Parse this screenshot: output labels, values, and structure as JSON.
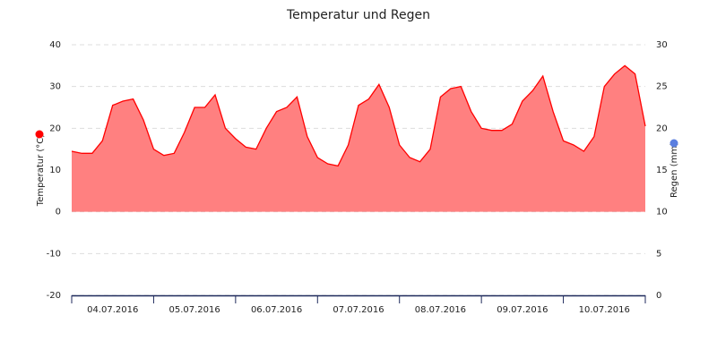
{
  "chart_data": {
    "type": "area",
    "title": "Temperatur und Regen",
    "ylabel": "Temperatur (°C)",
    "y2label": "Regen (mm)",
    "x": [
      0,
      0.125,
      0.25,
      0.375,
      0.5,
      0.625,
      0.75,
      0.875,
      1,
      1.125,
      1.25,
      1.375,
      1.5,
      1.625,
      1.75,
      1.875,
      2,
      2.125,
      2.25,
      2.375,
      2.5,
      2.625,
      2.75,
      2.875,
      3,
      3.125,
      3.25,
      3.375,
      3.5,
      3.625,
      3.75,
      3.875,
      4,
      4.125,
      4.25,
      4.375,
      4.5,
      4.625,
      4.75,
      4.875,
      5,
      5.125,
      5.25,
      5.375,
      5.5,
      5.625,
      5.75,
      5.875,
      6,
      6.125,
      6.25,
      6.375,
      6.5,
      6.625,
      6.75,
      6.875,
      7
    ],
    "series": [
      {
        "color": "#ff0000",
        "fill": "#ff8080",
        "values": [
          14.5,
          14,
          14,
          17,
          25.5,
          26.5,
          27,
          22,
          15,
          13.5,
          14,
          19,
          25,
          25,
          28,
          20,
          17.5,
          15.5,
          15,
          20,
          24,
          25,
          27.5,
          18,
          13,
          11.5,
          11,
          16,
          25.5,
          27,
          30.5,
          25,
          16,
          13,
          12,
          15,
          27.5,
          29.5,
          30,
          24,
          20,
          19.5,
          19.5,
          21,
          26.5,
          29,
          32.5,
          24,
          17,
          16,
          14.5,
          18,
          30,
          33,
          35,
          33,
          20.5
        ]
      }
    ],
    "y2_color": "#5b7fe0",
    "xlim": [
      0,
      7
    ],
    "xticks": [
      {
        "value": 0.5,
        "label": "04.07.2016"
      },
      {
        "value": 1.5,
        "label": "05.07.2016"
      },
      {
        "value": 2.5,
        "label": "06.07.2016"
      },
      {
        "value": 3.5,
        "label": "07.07.2016"
      },
      {
        "value": 4.5,
        "label": "08.07.2016"
      },
      {
        "value": 5.5,
        "label": "09.07.2016"
      },
      {
        "value": 6.5,
        "label": "10.07.2016"
      }
    ],
    "ylim": [
      -20,
      40
    ],
    "yticks": [
      -20,
      -10,
      0,
      10,
      20,
      30,
      40
    ],
    "y2lim": [
      0,
      30
    ],
    "y2ticks": [
      0,
      5,
      10,
      15,
      20,
      25,
      30
    ],
    "grid": true
  }
}
